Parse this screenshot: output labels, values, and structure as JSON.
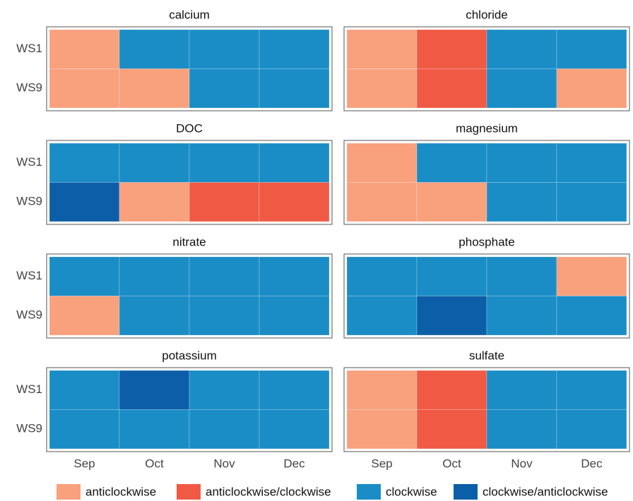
{
  "chart_data": {
    "type": "heatmap",
    "x_categories": [
      "Sep",
      "Oct",
      "Nov",
      "Dec"
    ],
    "y_categories": [
      "WS1",
      "WS9"
    ],
    "legend": [
      {
        "name": "anticlockwise",
        "color": "#f9a07d"
      },
      {
        "name": "anticlockwise/clockwise",
        "color": "#f05a45"
      },
      {
        "name": "clockwise",
        "color": "#1a8dc6"
      },
      {
        "name": "clockwise/anticlockwise",
        "color": "#0d5ea9"
      }
    ],
    "panels": [
      {
        "title": "calcium",
        "cells": [
          [
            "anticlockwise",
            "clockwise",
            "clockwise",
            "clockwise"
          ],
          [
            "anticlockwise",
            "anticlockwise",
            "clockwise",
            "clockwise"
          ]
        ]
      },
      {
        "title": "chloride",
        "cells": [
          [
            "anticlockwise",
            "anticlockwise/clockwise",
            "clockwise",
            "clockwise"
          ],
          [
            "anticlockwise",
            "anticlockwise/clockwise",
            "clockwise",
            "anticlockwise"
          ]
        ]
      },
      {
        "title": "DOC",
        "cells": [
          [
            "clockwise",
            "clockwise",
            "clockwise",
            "clockwise"
          ],
          [
            "clockwise/anticlockwise",
            "anticlockwise",
            "anticlockwise/clockwise",
            "anticlockwise/clockwise"
          ]
        ]
      },
      {
        "title": "magnesium",
        "cells": [
          [
            "anticlockwise",
            "clockwise",
            "clockwise",
            "clockwise"
          ],
          [
            "anticlockwise",
            "anticlockwise",
            "clockwise",
            "clockwise"
          ]
        ]
      },
      {
        "title": "nitrate",
        "cells": [
          [
            "clockwise",
            "clockwise",
            "clockwise",
            "clockwise"
          ],
          [
            "anticlockwise",
            "clockwise",
            "clockwise",
            "clockwise"
          ]
        ]
      },
      {
        "title": "phosphate",
        "cells": [
          [
            "clockwise",
            "clockwise",
            "clockwise",
            "anticlockwise"
          ],
          [
            "clockwise",
            "clockwise/anticlockwise",
            "clockwise",
            "clockwise"
          ]
        ]
      },
      {
        "title": "potassium",
        "cells": [
          [
            "clockwise",
            "clockwise/anticlockwise",
            "clockwise",
            "clockwise"
          ],
          [
            "clockwise",
            "clockwise",
            "clockwise",
            "clockwise"
          ]
        ]
      },
      {
        "title": "sulfate",
        "cells": [
          [
            "anticlockwise",
            "anticlockwise/clockwise",
            "clockwise",
            "clockwise"
          ],
          [
            "anticlockwise",
            "anticlockwise/clockwise",
            "clockwise",
            "clockwise"
          ]
        ]
      }
    ]
  }
}
